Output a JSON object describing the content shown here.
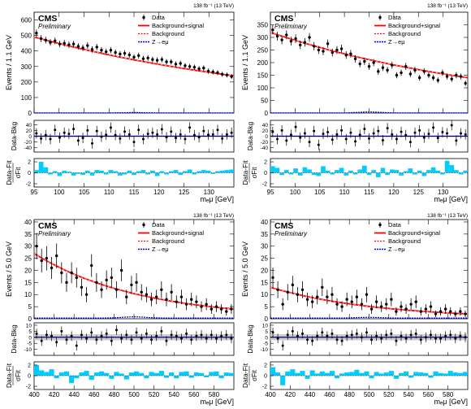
{
  "figure": {
    "lumi_label": "138 fb⁻¹ (13 TeV)",
    "experiment": "CMS",
    "status": "Preliminary",
    "colors": {
      "signal_bkg": "#ff0000",
      "background": "#ff0000",
      "signal": "#0000ff",
      "pull_bar": "#00ccff",
      "data": "#000000",
      "zero_line": "#000080"
    },
    "legend": [
      "Data",
      "Background+signal",
      "Background",
      "Z→eμ"
    ],
    "ylabel_top": [
      "Events / 1.1 GeV",
      "Events / 5.0 GeV"
    ],
    "ylabel_ratio": "Data-Bkg",
    "ylabel_pull_1": "Data-Fit",
    "ylabel_pull_2": "σFit",
    "xlabel": "mₑμ [GeV]"
  },
  "chart_data": [
    {
      "type": "scatter",
      "id": "top-left",
      "ylabel": "Events / 1.1 GeV",
      "xlabel": "mₑμ [GeV]",
      "xlim": [
        95,
        135
      ],
      "ylim": [
        0,
        650
      ],
      "xticks": [
        95,
        100,
        105,
        110,
        115,
        120,
        125,
        130
      ],
      "yticks": [
        0,
        100,
        200,
        300,
        400,
        500,
        600
      ],
      "ratio_ylim": [
        -55,
        55
      ],
      "ratio_yticks": [
        -40,
        -20,
        0,
        20,
        40
      ],
      "pull_ylim": [
        -2.6,
        2.6
      ],
      "pull_yticks": [
        -2,
        0,
        2
      ],
      "fit": {
        "y_start": 490,
        "y_end": 240
      },
      "data_y": [
        515,
        480,
        470,
        455,
        465,
        445,
        450,
        440,
        445,
        430,
        420,
        435,
        410,
        425,
        405,
        395,
        405,
        390,
        380,
        385,
        375,
        360,
        370,
        350,
        355,
        345,
        340,
        345,
        330,
        330,
        315,
        320,
        305,
        300,
        295,
        285,
        290,
        270,
        265,
        260,
        250,
        245,
        235
      ],
      "signal_peak": 3,
      "ratio": [
        10,
        -8,
        4,
        -10,
        22,
        -5,
        12,
        8,
        25,
        -15,
        -6,
        20,
        -25,
        18,
        -2,
        5,
        30,
        4,
        -8,
        16,
        6,
        -20,
        22,
        -10,
        8,
        12,
        6,
        24,
        -4,
        16,
        -6,
        6,
        -10,
        30,
        4,
        -4,
        18,
        5,
        6,
        22,
        -8,
        6,
        12
      ],
      "pull": [
        0.5,
        2.0,
        1.0,
        -0.3,
        0.3,
        -0.6,
        0.4,
        0.2,
        -0.5,
        -0.2,
        -0.4,
        0.4,
        -0.5,
        0.5,
        0.4,
        -0.3,
        0.5,
        0.3,
        -0.5,
        -0.3,
        0.4,
        -0.4,
        0.3,
        0.5,
        -0.3,
        0.4,
        -0.6,
        0.3,
        -0.3,
        0.3,
        0.5,
        -0.4,
        0.3,
        0.6,
        -0.3,
        0.3,
        0.5,
        0.4,
        -0.2,
        0.3,
        0.4,
        0.5,
        0.6
      ]
    },
    {
      "type": "scatter",
      "id": "top-right",
      "ylabel": "Events / 1.1 GeV",
      "xlabel": "mₑμ [GeV]",
      "xlim": [
        95,
        135
      ],
      "ylim": [
        0,
        400
      ],
      "xticks": [
        95,
        100,
        105,
        110,
        115,
        120,
        125,
        130
      ],
      "yticks": [
        0,
        50,
        100,
        150,
        200,
        250,
        300,
        350
      ],
      "ratio_ylim": [
        -55,
        55
      ],
      "ratio_yticks": [
        -40,
        -20,
        0,
        20,
        40
      ],
      "pull_ylim": [
        -2.6,
        2.6
      ],
      "pull_yticks": [
        -2,
        0,
        2
      ],
      "fit": {
        "y_start": 320,
        "y_end": 140
      },
      "data_y": [
        330,
        305,
        290,
        310,
        285,
        295,
        270,
        280,
        300,
        265,
        250,
        245,
        275,
        240,
        250,
        255,
        230,
        235,
        215,
        195,
        205,
        185,
        200,
        165,
        180,
        170,
        190,
        150,
        160,
        185,
        155,
        170,
        140,
        165,
        150,
        140,
        130,
        160,
        145,
        135,
        150,
        145,
        118
      ],
      "signal_peak": 4,
      "ratio": [
        15,
        -10,
        20,
        -15,
        5,
        32,
        -5,
        10,
        -20,
        18,
        -30,
        8,
        14,
        -12,
        6,
        20,
        -10,
        12,
        -18,
        5,
        25,
        -8,
        10,
        18,
        -14,
        28,
        6,
        -10,
        15,
        4,
        -20,
        12,
        20,
        -5,
        8,
        30,
        -6,
        14,
        10,
        38,
        -15,
        10,
        6
      ],
      "pull": [
        1.2,
        0.9,
        -0.4,
        0.5,
        -0.3,
        0.8,
        -0.5,
        1.0,
        0.6,
        -0.4,
        -0.6,
        1.2,
        0.4,
        -0.3,
        0.5,
        0.9,
        -0.5,
        0.4,
        -0.3,
        0.6,
        1.3,
        -0.4,
        0.5,
        -0.8,
        0.9,
        -0.4,
        0.6,
        0.5,
        -0.5,
        0.3,
        0.8,
        -0.3,
        0.4,
        -0.6,
        0.5,
        1.0,
        0.4,
        -0.3,
        2.2,
        1.4,
        0.5,
        -0.3,
        0.4
      ]
    },
    {
      "type": "scatter",
      "id": "bottom-left",
      "ylabel": "Events / 5.0 GeV",
      "xlabel": "mₑμ [GeV]",
      "xlim": [
        400,
        600
      ],
      "ylim": [
        0,
        41
      ],
      "xticks": [
        400,
        420,
        440,
        460,
        480,
        500,
        520,
        540,
        560,
        580
      ],
      "yticks": [
        0,
        5,
        10,
        15,
        20,
        25,
        30,
        35,
        40
      ],
      "ratio_ylim": [
        -15,
        12
      ],
      "ratio_yticks": [
        -10,
        -5,
        0,
        5,
        10
      ],
      "pull_ylim": [
        -2.6,
        2.6
      ],
      "pull_yticks": [
        -2,
        0,
        2
      ],
      "fit": {
        "y_start": 27,
        "y_end": 4
      },
      "data_y": [
        30,
        24,
        25,
        21,
        26,
        19,
        15,
        19,
        17,
        13,
        10,
        22,
        15,
        12,
        16,
        17,
        12,
        20,
        9,
        14,
        15,
        11,
        10,
        8,
        9,
        12,
        8,
        11,
        7,
        9,
        6,
        8,
        7,
        5,
        6,
        4,
        5,
        4,
        3,
        4
      ],
      "signal_peak": 0.5,
      "ratio": [
        3,
        -3,
        2,
        1,
        -4,
        5,
        -2,
        1,
        -7,
        2,
        -1,
        4,
        -2,
        1,
        3,
        -3,
        6,
        -1,
        2,
        -2,
        4,
        -1,
        3,
        -2,
        1,
        5,
        -3,
        2,
        1,
        -1,
        3,
        -2,
        1,
        2,
        -1,
        2,
        -1,
        1,
        2,
        -1
      ],
      "pull": [
        2.0,
        1.0,
        0.7,
        1.2,
        -0.5,
        0.6,
        0.8,
        -1.4,
        -0.5,
        0.6,
        0.9,
        -0.8,
        0.6,
        0.8,
        0.5,
        -0.6,
        0.7,
        0.4,
        -0.7,
        0.6,
        0.8,
        0.5,
        -0.5,
        0.7,
        0.5,
        0.9,
        -0.4,
        0.6,
        -0.5,
        0.7,
        0.8,
        -0.4,
        0.6,
        0.5,
        -0.3,
        0.7,
        0.8,
        -0.5,
        0.6,
        0.5
      ]
    },
    {
      "type": "scatter",
      "id": "bottom-right",
      "ylabel": "Events / 5.0 GeV",
      "xlabel": "mₑμ [GeV]",
      "xlim": [
        400,
        600
      ],
      "ylim": [
        0,
        41
      ],
      "xticks": [
        400,
        420,
        440,
        460,
        480,
        500,
        520,
        540,
        560,
        580
      ],
      "yticks": [
        0,
        5,
        10,
        15,
        20,
        25,
        30,
        35,
        40
      ],
      "ratio_ylim": [
        -15,
        12
      ],
      "ratio_yticks": [
        -10,
        -5,
        0,
        5,
        10
      ],
      "pull_ylim": [
        -2.6,
        2.6
      ],
      "pull_yticks": [
        -2,
        0,
        2
      ],
      "fit": {
        "y_start": 13,
        "y_end": 2
      },
      "data_y": [
        17,
        12,
        6,
        11,
        14,
        10,
        12,
        8,
        7,
        9,
        13,
        9,
        10,
        6,
        5,
        8,
        7,
        9,
        6,
        10,
        4,
        7,
        5,
        6,
        8,
        3,
        5,
        4,
        6,
        7,
        3,
        4,
        5,
        2,
        3,
        4,
        3,
        2,
        3,
        2
      ],
      "signal_peak": 0.3,
      "ratio": [
        4,
        -1,
        -7,
        2,
        5,
        1,
        3,
        -2,
        -3,
        1,
        4,
        1,
        3,
        -2,
        -3,
        1,
        2,
        3,
        0,
        4,
        -2,
        1,
        -1,
        2,
        3,
        -3,
        1,
        -1,
        2,
        3,
        -2,
        0,
        2,
        -1,
        -1,
        1,
        2,
        -1,
        1,
        0
      ],
      "pull": [
        1.6,
        0.6,
        -1.8,
        0.8,
        1.2,
        0.5,
        0.9,
        -0.6,
        1.0,
        0.4,
        0.8,
        0.5,
        0.9,
        -0.5,
        0.4,
        0.6,
        0.7,
        1.1,
        0.5,
        0.8,
        -0.5,
        0.7,
        0.4,
        0.6,
        0.9,
        -0.6,
        0.5,
        0.8,
        -0.4,
        0.7,
        0.6,
        0.5,
        -0.4,
        0.8,
        0.5,
        0.4,
        0.9,
        0.6,
        0.5,
        0.7
      ]
    }
  ]
}
